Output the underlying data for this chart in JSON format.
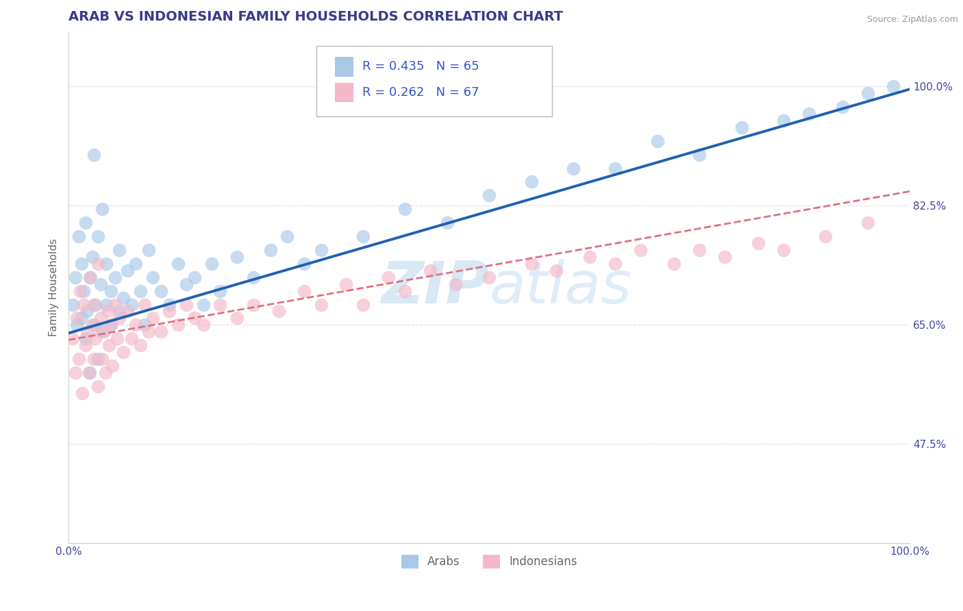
{
  "title": "ARAB VS INDONESIAN FAMILY HOUSEHOLDS CORRELATION CHART",
  "source": "Source: ZipAtlas.com",
  "ylabel": "Family Households",
  "y_ticks": [
    0.475,
    0.65,
    0.825,
    1.0
  ],
  "y_tick_labels": [
    "47.5%",
    "65.0%",
    "82.5%",
    "100.0%"
  ],
  "xlim": [
    0.0,
    1.0
  ],
  "ylim": [
    0.33,
    1.08
  ],
  "arab_R": 0.435,
  "arab_N": 65,
  "indonesian_R": 0.262,
  "indonesian_N": 67,
  "arab_color": "#a8c8e8",
  "indonesian_color": "#f4b8c8",
  "arab_line_color": "#2060b0",
  "indonesian_line_color": "#e07080",
  "watermark_color": "#d0e4f0",
  "title_color": "#3a3a8c",
  "source_color": "#999999",
  "axis_label_color": "#666666",
  "tick_color": "#4444aa",
  "legend_color": "#3355cc",
  "background_color": "#ffffff",
  "grid_color": "#e0e0e0",
  "arab_line_intercept": 0.638,
  "arab_line_slope": 0.358,
  "indo_line_intercept": 0.628,
  "indo_line_slope": 0.218,
  "arab_x": [
    0.005,
    0.008,
    0.01,
    0.012,
    0.015,
    0.015,
    0.018,
    0.02,
    0.02,
    0.022,
    0.025,
    0.025,
    0.028,
    0.03,
    0.03,
    0.032,
    0.035,
    0.035,
    0.038,
    0.04,
    0.04,
    0.045,
    0.045,
    0.05,
    0.05,
    0.055,
    0.06,
    0.06,
    0.065,
    0.07,
    0.075,
    0.08,
    0.085,
    0.09,
    0.095,
    0.1,
    0.11,
    0.12,
    0.13,
    0.14,
    0.15,
    0.16,
    0.17,
    0.18,
    0.2,
    0.22,
    0.24,
    0.26,
    0.28,
    0.3,
    0.35,
    0.4,
    0.45,
    0.5,
    0.55,
    0.6,
    0.65,
    0.7,
    0.75,
    0.8,
    0.85,
    0.88,
    0.92,
    0.95,
    0.98
  ],
  "arab_y": [
    0.68,
    0.72,
    0.65,
    0.78,
    0.66,
    0.74,
    0.7,
    0.63,
    0.8,
    0.67,
    0.72,
    0.58,
    0.75,
    0.65,
    0.9,
    0.68,
    0.6,
    0.78,
    0.71,
    0.64,
    0.82,
    0.68,
    0.74,
    0.65,
    0.7,
    0.72,
    0.67,
    0.76,
    0.69,
    0.73,
    0.68,
    0.74,
    0.7,
    0.65,
    0.76,
    0.72,
    0.7,
    0.68,
    0.74,
    0.71,
    0.72,
    0.68,
    0.74,
    0.7,
    0.75,
    0.72,
    0.76,
    0.78,
    0.74,
    0.76,
    0.78,
    0.82,
    0.8,
    0.84,
    0.86,
    0.88,
    0.88,
    0.92,
    0.9,
    0.94,
    0.95,
    0.96,
    0.97,
    0.99,
    1.0
  ],
  "indo_x": [
    0.005,
    0.008,
    0.01,
    0.012,
    0.014,
    0.016,
    0.018,
    0.02,
    0.022,
    0.024,
    0.026,
    0.028,
    0.03,
    0.03,
    0.032,
    0.035,
    0.035,
    0.038,
    0.04,
    0.042,
    0.044,
    0.046,
    0.048,
    0.05,
    0.052,
    0.055,
    0.058,
    0.06,
    0.065,
    0.07,
    0.075,
    0.08,
    0.085,
    0.09,
    0.095,
    0.1,
    0.11,
    0.12,
    0.13,
    0.14,
    0.15,
    0.16,
    0.18,
    0.2,
    0.22,
    0.25,
    0.28,
    0.3,
    0.33,
    0.35,
    0.38,
    0.4,
    0.43,
    0.46,
    0.5,
    0.55,
    0.58,
    0.62,
    0.65,
    0.68,
    0.72,
    0.75,
    0.78,
    0.82,
    0.85,
    0.9,
    0.95
  ],
  "indo_y": [
    0.63,
    0.58,
    0.66,
    0.6,
    0.7,
    0.55,
    0.68,
    0.62,
    0.64,
    0.58,
    0.72,
    0.65,
    0.6,
    0.68,
    0.63,
    0.56,
    0.74,
    0.66,
    0.6,
    0.64,
    0.58,
    0.67,
    0.62,
    0.65,
    0.59,
    0.68,
    0.63,
    0.66,
    0.61,
    0.67,
    0.63,
    0.65,
    0.62,
    0.68,
    0.64,
    0.66,
    0.64,
    0.67,
    0.65,
    0.68,
    0.66,
    0.65,
    0.68,
    0.66,
    0.68,
    0.67,
    0.7,
    0.68,
    0.71,
    0.68,
    0.72,
    0.7,
    0.73,
    0.71,
    0.72,
    0.74,
    0.73,
    0.75,
    0.74,
    0.76,
    0.74,
    0.76,
    0.75,
    0.77,
    0.76,
    0.78,
    0.8
  ]
}
